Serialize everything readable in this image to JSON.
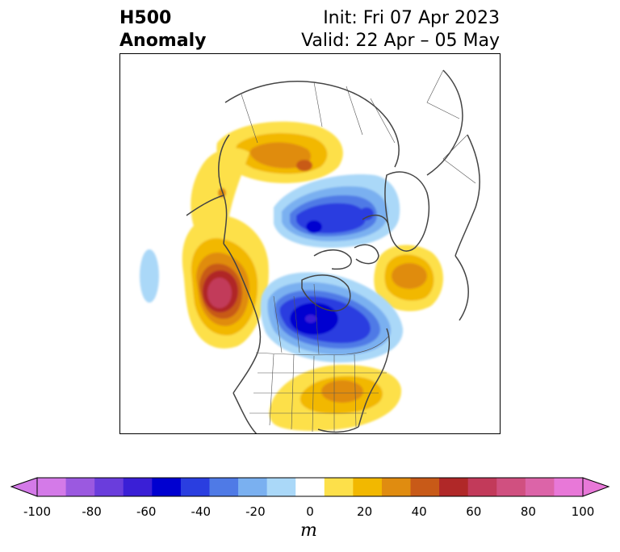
{
  "title": {
    "left_line1": "H500",
    "left_line2": "Anomaly",
    "right_line1": "Init: Fri 07 Apr 2023",
    "right_line2": "Valid: 22 Apr – 05 May"
  },
  "map": {
    "projection": "polar-stereographic",
    "region": "Northern Hemisphere (North America / Arctic)",
    "features": [
      "coastlines",
      "country-borders",
      "us-state-borders",
      "canada-province-borders"
    ],
    "anomaly_centers": [
      {
        "name": "northeast-pacific-ridge",
        "sign": "positive",
        "peak_m": 75
      },
      {
        "name": "arctic-siberia-ridge",
        "sign": "positive",
        "peak_m": 55
      },
      {
        "name": "greenland-east-ridge",
        "sign": "positive",
        "peak_m": 35
      },
      {
        "name": "southeast-us-ridge",
        "sign": "positive",
        "peak_m": 35
      },
      {
        "name": "central-canada-trough",
        "sign": "negative",
        "peak_m": -65
      },
      {
        "name": "arctic-ocean-trough",
        "sign": "negative",
        "peak_m": -60
      },
      {
        "name": "east-pacific-weak-trough",
        "sign": "negative",
        "peak_m": -15
      }
    ]
  },
  "colorbar": {
    "levels": [
      -100,
      -90,
      -80,
      -70,
      -60,
      -50,
      -40,
      -30,
      -20,
      -10,
      10,
      20,
      30,
      40,
      50,
      60,
      70,
      80,
      90,
      100
    ],
    "colors": [
      "#d47ae8",
      "#9b59e0",
      "#6a3ddc",
      "#3a1fd6",
      "#0000d0",
      "#2a3ee0",
      "#4f7ae6",
      "#7ab0f0",
      "#aad8f8",
      "#ffffff",
      "#fde04a",
      "#f2b800",
      "#e08c10",
      "#c85a18",
      "#b02828",
      "#c23a5a",
      "#d05080",
      "#dc64a8",
      "#e878d8"
    ],
    "extend_min_color": "#d47ae8",
    "extend_max_color": "#e878d8",
    "ticks": [
      "-100",
      "-80",
      "-60",
      "-40",
      "-20",
      "0",
      "20",
      "40",
      "60",
      "80",
      "100"
    ],
    "unit": "m"
  }
}
